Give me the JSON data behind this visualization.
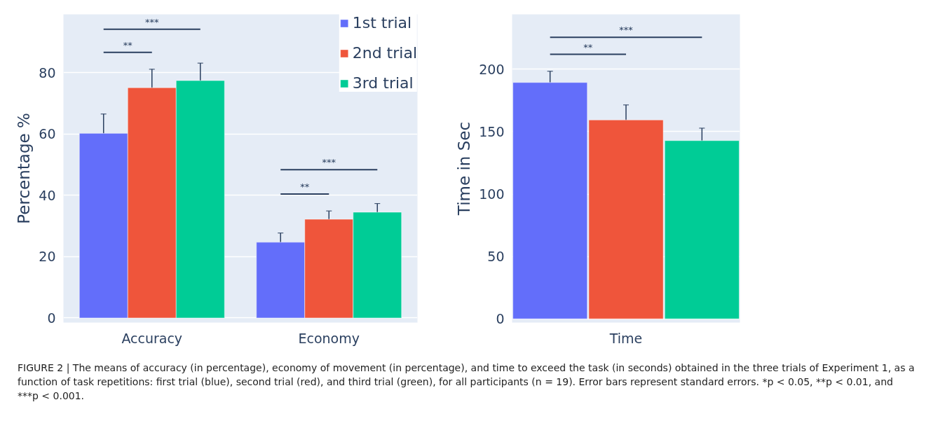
{
  "chart_data": [
    {
      "type": "bar",
      "categories": [
        "Accuracy",
        "Economy"
      ],
      "ylabel": "Percentage %",
      "ylim": [
        -1.5,
        99
      ],
      "yticks": [
        0,
        20,
        40,
        60,
        80
      ],
      "grid": "y",
      "legend": "top right",
      "series": [
        {
          "name": "1st trial",
          "color": "#636efa",
          "values": [
            60.2,
            24.7
          ],
          "errors": [
            6.3,
            3
          ]
        },
        {
          "name": "2nd trial",
          "color": "#ef553b",
          "values": [
            75.1,
            32.2
          ],
          "errors": [
            6,
            2.7
          ]
        },
        {
          "name": "3rd trial",
          "color": "#00cc96",
          "values": [
            77.4,
            34.5
          ],
          "errors": [
            5.7,
            2.8
          ]
        }
      ],
      "annotations": [
        "**",
        "***",
        "**",
        "***"
      ]
    },
    {
      "type": "bar",
      "categories": [
        null,
        "Time",
        null
      ],
      "ylabel": "Time in Sec",
      "ylim": [
        -3,
        244
      ],
      "yticks": [
        0,
        50,
        100,
        150,
        200
      ],
      "grid": "y",
      "values": [
        189.4,
        159.4,
        142.8
      ],
      "colors": [
        "#636efa",
        "#ef553b",
        "#00cc96"
      ],
      "errors": [
        9,
        12,
        10
      ],
      "annotations": [
        "**",
        "***"
      ]
    },
    {
      "type": "other",
      "annotations": [
        "FIGURE 2 | The means of accuracy (in percentage), economy of movement (in percentage), and time to exceed the task (in seconds) obtained in the three trials of Experiment 1, as a function of task repetitions: first trial (blue), second trial (red), and third trial (green), for all participants (n = 19). Error bars represent standard errors. *p < 0.05, **p < 0.01, and ***p < 0.001."
      ]
    }
  ]
}
